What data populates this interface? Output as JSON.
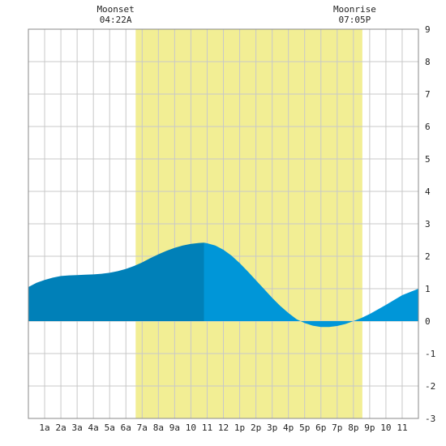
{
  "chart_data": {
    "type": "area",
    "x_unit": "hour of day",
    "x_range": [
      0,
      24
    ],
    "ylim": [
      -3,
      9
    ],
    "grid": true,
    "y_ticks": [
      -3,
      -2,
      -1,
      0,
      1,
      2,
      3,
      4,
      5,
      6,
      7,
      8,
      9
    ],
    "x_ticks": [
      {
        "x": 1,
        "label": "1a"
      },
      {
        "x": 2,
        "label": "2a"
      },
      {
        "x": 3,
        "label": "3a"
      },
      {
        "x": 4,
        "label": "4a"
      },
      {
        "x": 5,
        "label": "5a"
      },
      {
        "x": 6,
        "label": "6a"
      },
      {
        "x": 7,
        "label": "7a"
      },
      {
        "x": 8,
        "label": "8a"
      },
      {
        "x": 9,
        "label": "9a"
      },
      {
        "x": 10,
        "label": "10"
      },
      {
        "x": 11,
        "label": "11"
      },
      {
        "x": 12,
        "label": "12"
      },
      {
        "x": 13,
        "label": "1p"
      },
      {
        "x": 14,
        "label": "2p"
      },
      {
        "x": 15,
        "label": "3p"
      },
      {
        "x": 16,
        "label": "4p"
      },
      {
        "x": 17,
        "label": "5p"
      },
      {
        "x": 18,
        "label": "6p"
      },
      {
        "x": 19,
        "label": "7p"
      },
      {
        "x": 20,
        "label": "8p"
      },
      {
        "x": 21,
        "label": "9p"
      },
      {
        "x": 22,
        "label": "10"
      },
      {
        "x": 23,
        "label": "11"
      }
    ],
    "daylight": {
      "start": 6.6,
      "end": 20.55
    },
    "split_x": 10.8,
    "series": [
      {
        "x": [
          0,
          0.5,
          1,
          1.5,
          2,
          2.5,
          3,
          3.5,
          4,
          4.5,
          5,
          5.5,
          6,
          6.5,
          7,
          7.5,
          8,
          8.5,
          9,
          9.5,
          10,
          10.5,
          10.8,
          11,
          11.5,
          12,
          12.5,
          13,
          13.5,
          14,
          14.5,
          15,
          15.5,
          16,
          16.5,
          17,
          17.5,
          18,
          18.5,
          19,
          19.5,
          20,
          20.5,
          21,
          21.5,
          22,
          22.5,
          23,
          23.5,
          24
        ],
        "y": [
          1.05,
          1.18,
          1.27,
          1.34,
          1.39,
          1.41,
          1.42,
          1.43,
          1.44,
          1.46,
          1.49,
          1.54,
          1.61,
          1.7,
          1.81,
          1.94,
          2.06,
          2.17,
          2.26,
          2.33,
          2.38,
          2.41,
          2.42,
          2.4,
          2.33,
          2.2,
          2.02,
          1.79,
          1.53,
          1.26,
          0.99,
          0.72,
          0.47,
          0.25,
          0.06,
          -0.06,
          -0.14,
          -0.18,
          -0.18,
          -0.15,
          -0.09,
          0.0,
          0.1,
          0.22,
          0.36,
          0.5,
          0.65,
          0.8,
          0.9,
          1.0
        ]
      }
    ],
    "colors": {
      "night_fill": "#0080b8",
      "day_fill": "#0096d8",
      "daylight_band": "#f2ee94",
      "grid": "#c8c8c8",
      "frame": "#888888"
    }
  },
  "annotations": {
    "moonset": {
      "title": "Moonset",
      "time": "04:22A",
      "x": 5.37
    },
    "moonrise": {
      "title": "Moonrise",
      "time": "07:05P",
      "x": 20.08
    }
  }
}
